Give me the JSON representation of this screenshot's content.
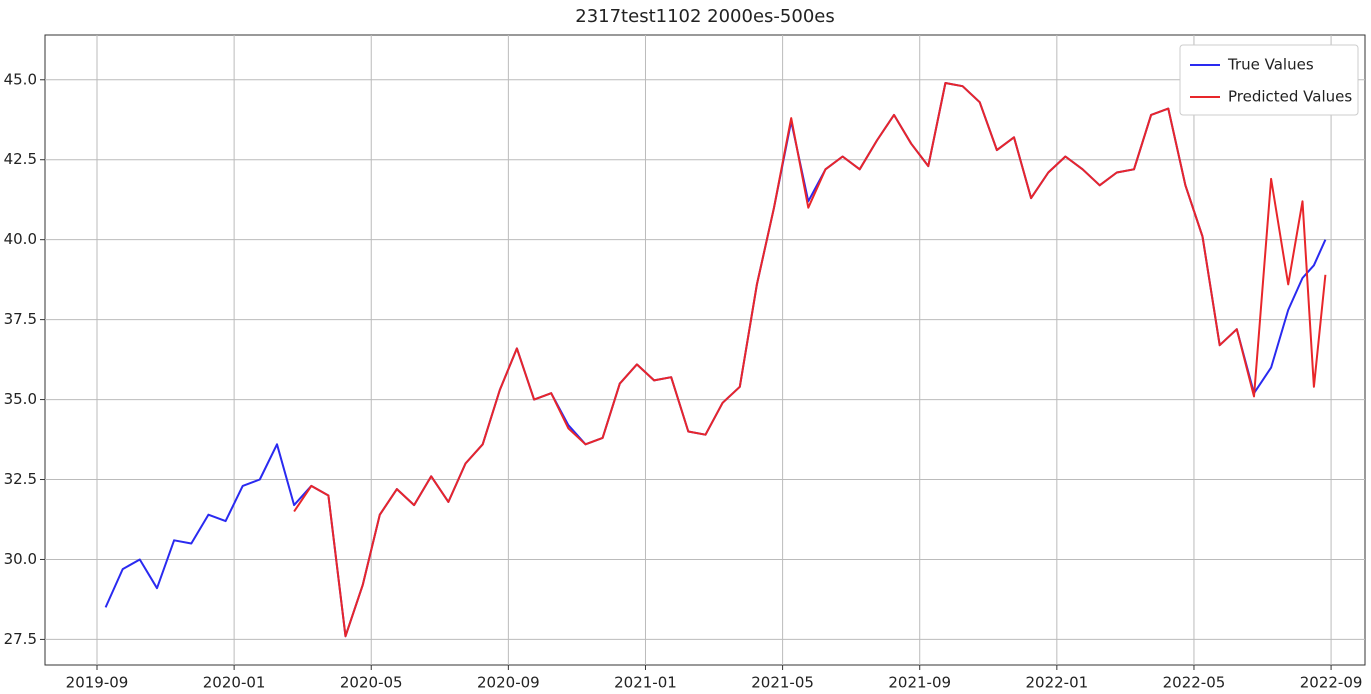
{
  "chart_data": {
    "type": "line",
    "title": "2317test1102 2000es-500es",
    "x": [
      "2019-09",
      "2019-09",
      "2019-10",
      "2019-10",
      "2019-11",
      "2019-11",
      "2019-12",
      "2019-12",
      "2020-01",
      "2020-01",
      "2020-02",
      "2020-02",
      "2020-03",
      "2020-03",
      "2020-04",
      "2020-04",
      "2020-05",
      "2020-05",
      "2020-06",
      "2020-06",
      "2020-07",
      "2020-07",
      "2020-08",
      "2020-08",
      "2020-09",
      "2020-09",
      "2020-10",
      "2020-10",
      "2020-11",
      "2020-11",
      "2020-12",
      "2020-12",
      "2021-01",
      "2021-01",
      "2021-02",
      "2021-02",
      "2021-03",
      "2021-03",
      "2021-04",
      "2021-04",
      "2021-05",
      "2021-05",
      "2021-06",
      "2021-06",
      "2021-07",
      "2021-07",
      "2021-08",
      "2021-08",
      "2021-09",
      "2021-09",
      "2021-10",
      "2021-10",
      "2021-11",
      "2021-11",
      "2021-12",
      "2021-12",
      "2022-01",
      "2022-01",
      "2022-02",
      "2022-02",
      "2022-03",
      "2022-03",
      "2022-04",
      "2022-04",
      "2022-05",
      "2022-05",
      "2022-06",
      "2022-06",
      "2022-07",
      "2022-07",
      "2022-08",
      "2022-08",
      "2022-08"
    ],
    "series": [
      {
        "name": "True Values",
        "color": "#2a2af0",
        "values": [
          28.5,
          29.7,
          30.0,
          29.1,
          30.6,
          30.5,
          31.4,
          31.2,
          32.3,
          32.5,
          33.6,
          31.7,
          32.3,
          32.0,
          27.6,
          29.2,
          31.4,
          32.2,
          31.7,
          32.6,
          31.8,
          33.0,
          33.6,
          35.3,
          36.6,
          35.0,
          35.2,
          34.2,
          33.6,
          33.8,
          35.5,
          36.1,
          35.6,
          35.7,
          34.0,
          33.9,
          34.9,
          35.4,
          38.6,
          41.0,
          43.7,
          41.2,
          42.2,
          42.6,
          42.2,
          43.1,
          43.9,
          43.0,
          42.3,
          44.9,
          44.8,
          44.3,
          42.8,
          43.2,
          41.3,
          42.1,
          42.6,
          42.2,
          41.7,
          42.1,
          42.2,
          43.9,
          44.1,
          41.7,
          40.1,
          36.7,
          37.2,
          35.2,
          36.0,
          37.8,
          38.8,
          39.2,
          40.0
        ]
      },
      {
        "name": "Predicted Values",
        "color": "#e8262a",
        "values": [
          null,
          null,
          null,
          null,
          null,
          null,
          null,
          null,
          null,
          null,
          null,
          31.5,
          32.3,
          32.0,
          27.6,
          29.2,
          31.4,
          32.2,
          31.7,
          32.6,
          31.8,
          33.0,
          33.6,
          35.3,
          36.6,
          35.0,
          35.2,
          34.1,
          33.6,
          33.8,
          35.5,
          36.1,
          35.6,
          35.7,
          34.0,
          33.9,
          34.9,
          35.4,
          38.6,
          41.0,
          43.8,
          41.0,
          42.2,
          42.6,
          42.2,
          43.1,
          43.9,
          43.0,
          42.3,
          44.9,
          44.8,
          44.3,
          42.8,
          43.2,
          41.3,
          42.1,
          42.6,
          42.2,
          41.7,
          42.1,
          42.2,
          43.9,
          44.1,
          41.7,
          40.1,
          36.7,
          37.2,
          35.1,
          41.9,
          38.6,
          41.2,
          35.4,
          38.9
        ]
      }
    ],
    "xticks": [
      "2019-09",
      "2020-01",
      "2020-05",
      "2020-09",
      "2021-01",
      "2021-05",
      "2021-09",
      "2022-01",
      "2022-05",
      "2022-09"
    ],
    "ylim": [
      26.7,
      46.4
    ],
    "yticks": [
      {
        "value": 27.5,
        "label": "27.5"
      },
      {
        "value": 30,
        "label": "30.0"
      },
      {
        "value": 32.5,
        "label": "32.5"
      },
      {
        "value": 35,
        "label": "35.0"
      },
      {
        "value": 37.5,
        "label": "37.5"
      },
      {
        "value": 40,
        "label": "40.0"
      },
      {
        "value": 42.5,
        "label": "42.5"
      },
      {
        "value": 45,
        "label": "45.0"
      }
    ],
    "grid": true,
    "legend": "upper right"
  }
}
